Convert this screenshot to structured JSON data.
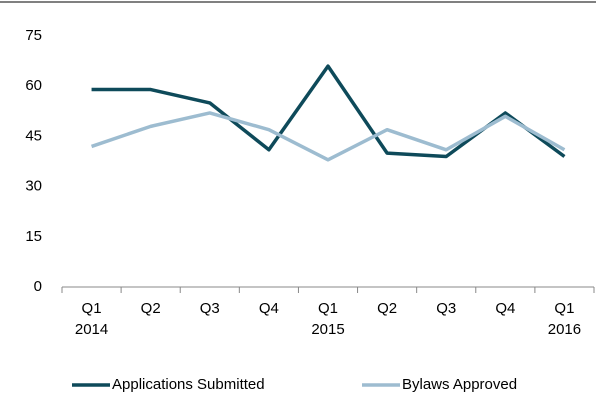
{
  "chart_data": {
    "type": "line",
    "categories": [
      [
        "Q1",
        "2014"
      ],
      [
        "Q2"
      ],
      [
        "Q3"
      ],
      [
        "Q4"
      ],
      [
        "Q1",
        "2015"
      ],
      [
        "Q2"
      ],
      [
        "Q3"
      ],
      [
        "Q4"
      ],
      [
        "Q1",
        "2016"
      ]
    ],
    "series": [
      {
        "name": "Applications Submitted",
        "color": "#0e4a5a",
        "values": [
          59,
          59,
          55,
          41,
          66,
          40,
          39,
          52,
          39
        ]
      },
      {
        "name": "Bylaws Approved",
        "color": "#9dbcd0",
        "values": [
          42,
          48,
          52,
          47,
          38,
          47,
          41,
          51,
          41
        ]
      }
    ],
    "ylim": [
      0,
      75
    ],
    "yticks": [
      0,
      15,
      30,
      45,
      60,
      75
    ],
    "grid": false,
    "legend": "bottom"
  }
}
